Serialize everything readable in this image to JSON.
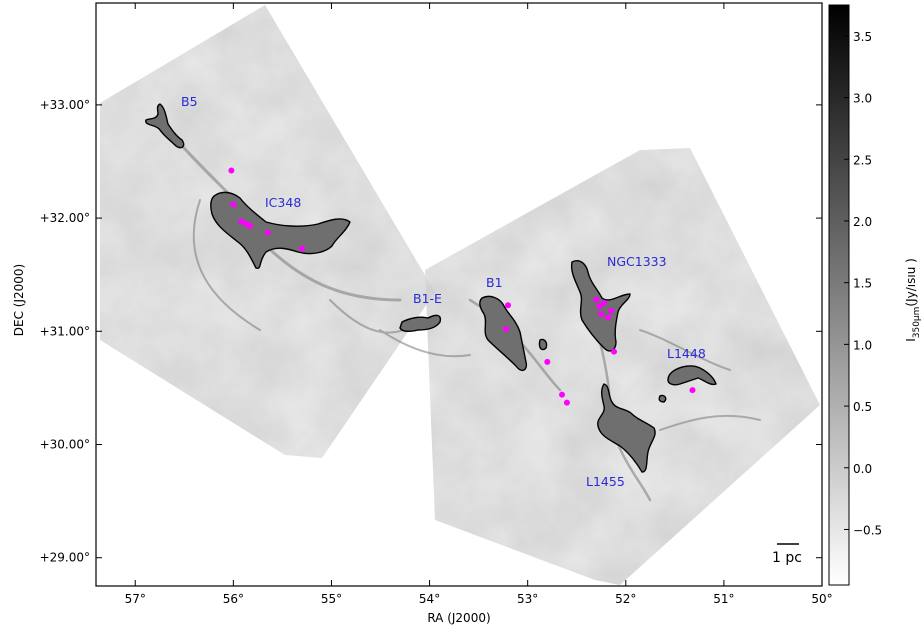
{
  "chart_data": {
    "type": "heatmap",
    "title": "",
    "xlabel": "RA (J2000)",
    "ylabel": "DEC (J2000)",
    "xlim": [
      57.4,
      50.0
    ],
    "ylim": [
      28.75,
      33.9
    ],
    "x_ticks": [
      {
        "value": 57,
        "label": "57°"
      },
      {
        "value": 56,
        "label": "56°"
      },
      {
        "value": 55,
        "label": "55°"
      },
      {
        "value": 54,
        "label": "54°"
      },
      {
        "value": 53,
        "label": "53°"
      },
      {
        "value": 52,
        "label": "52°"
      },
      {
        "value": 51,
        "label": "51°"
      },
      {
        "value": 50,
        "label": "50°"
      }
    ],
    "y_ticks": [
      {
        "value": 33,
        "label": "+33.00°"
      },
      {
        "value": 32,
        "label": "+32.00°"
      },
      {
        "value": 31,
        "label": "+31.00°"
      },
      {
        "value": 30,
        "label": "+30.00°"
      },
      {
        "value": 29,
        "label": "+29.00°"
      }
    ],
    "colorbar": {
      "label_html": "I<sub>350μm</sub> (Jy/beam)",
      "label_text": "I",
      "label_sub": "350μm",
      "label_units": "(Jy/ısıu  )",
      "colormap": "gray_r",
      "range": [
        -0.95,
        3.75
      ],
      "ticks": [
        {
          "value": 3.5,
          "label": "3.5"
        },
        {
          "value": 3.0,
          "label": "3.0"
        },
        {
          "value": 2.5,
          "label": "2.5"
        },
        {
          "value": 2.0,
          "label": "2.0"
        },
        {
          "value": 1.5,
          "label": "1.5"
        },
        {
          "value": 1.0,
          "label": "1.0"
        },
        {
          "value": 0.5,
          "label": "0.5"
        },
        {
          "value": 0.0,
          "label": "0.0"
        },
        {
          "value": -0.5,
          "label": "−0.5"
        }
      ]
    },
    "regions": [
      {
        "name": "B5",
        "label_ra": 56.4,
        "label_dec": 33.04
      },
      {
        "name": "IC348",
        "label_ra": 55.55,
        "label_dec": 32.13
      },
      {
        "name": "B1-E",
        "label_ra": 53.95,
        "label_dec": 31.28
      },
      {
        "name": "B1",
        "label_ra": 53.3,
        "label_dec": 31.37
      },
      {
        "name": "NGC1333",
        "label_ra": 51.9,
        "label_dec": 31.58
      },
      {
        "name": "L1448",
        "label_ra": 51.35,
        "label_dec": 30.87
      },
      {
        "name": "L1455",
        "label_ra": 51.9,
        "label_dec": 29.92
      }
    ],
    "contour_level": 1.5,
    "sources": [
      {
        "ra": 56.02,
        "dec": 32.42
      },
      {
        "ra": 56.0,
        "dec": 32.12
      },
      {
        "ra": 55.92,
        "dec": 31.97
      },
      {
        "ra": 55.87,
        "dec": 31.95
      },
      {
        "ra": 55.83,
        "dec": 31.93
      },
      {
        "ra": 55.65,
        "dec": 31.87
      },
      {
        "ra": 55.3,
        "dec": 31.73
      },
      {
        "ra": 53.2,
        "dec": 31.23
      },
      {
        "ra": 53.22,
        "dec": 31.02
      },
      {
        "ra": 52.8,
        "dec": 30.73
      },
      {
        "ra": 52.65,
        "dec": 30.44
      },
      {
        "ra": 52.6,
        "dec": 30.37
      },
      {
        "ra": 52.3,
        "dec": 31.28
      },
      {
        "ra": 52.27,
        "dec": 31.22
      },
      {
        "ra": 52.22,
        "dec": 31.25
      },
      {
        "ra": 52.25,
        "dec": 31.15
      },
      {
        "ra": 52.18,
        "dec": 31.12
      },
      {
        "ra": 52.15,
        "dec": 31.18
      },
      {
        "ra": 52.12,
        "dec": 30.82
      },
      {
        "ra": 51.32,
        "dec": 30.48
      }
    ],
    "scalebar": {
      "label": "1 pc"
    },
    "grid": false,
    "legend": "none"
  },
  "colors": {
    "source_marker": "#ff00ff",
    "region_label": "#2b2bd6",
    "contour": "#000000"
  }
}
